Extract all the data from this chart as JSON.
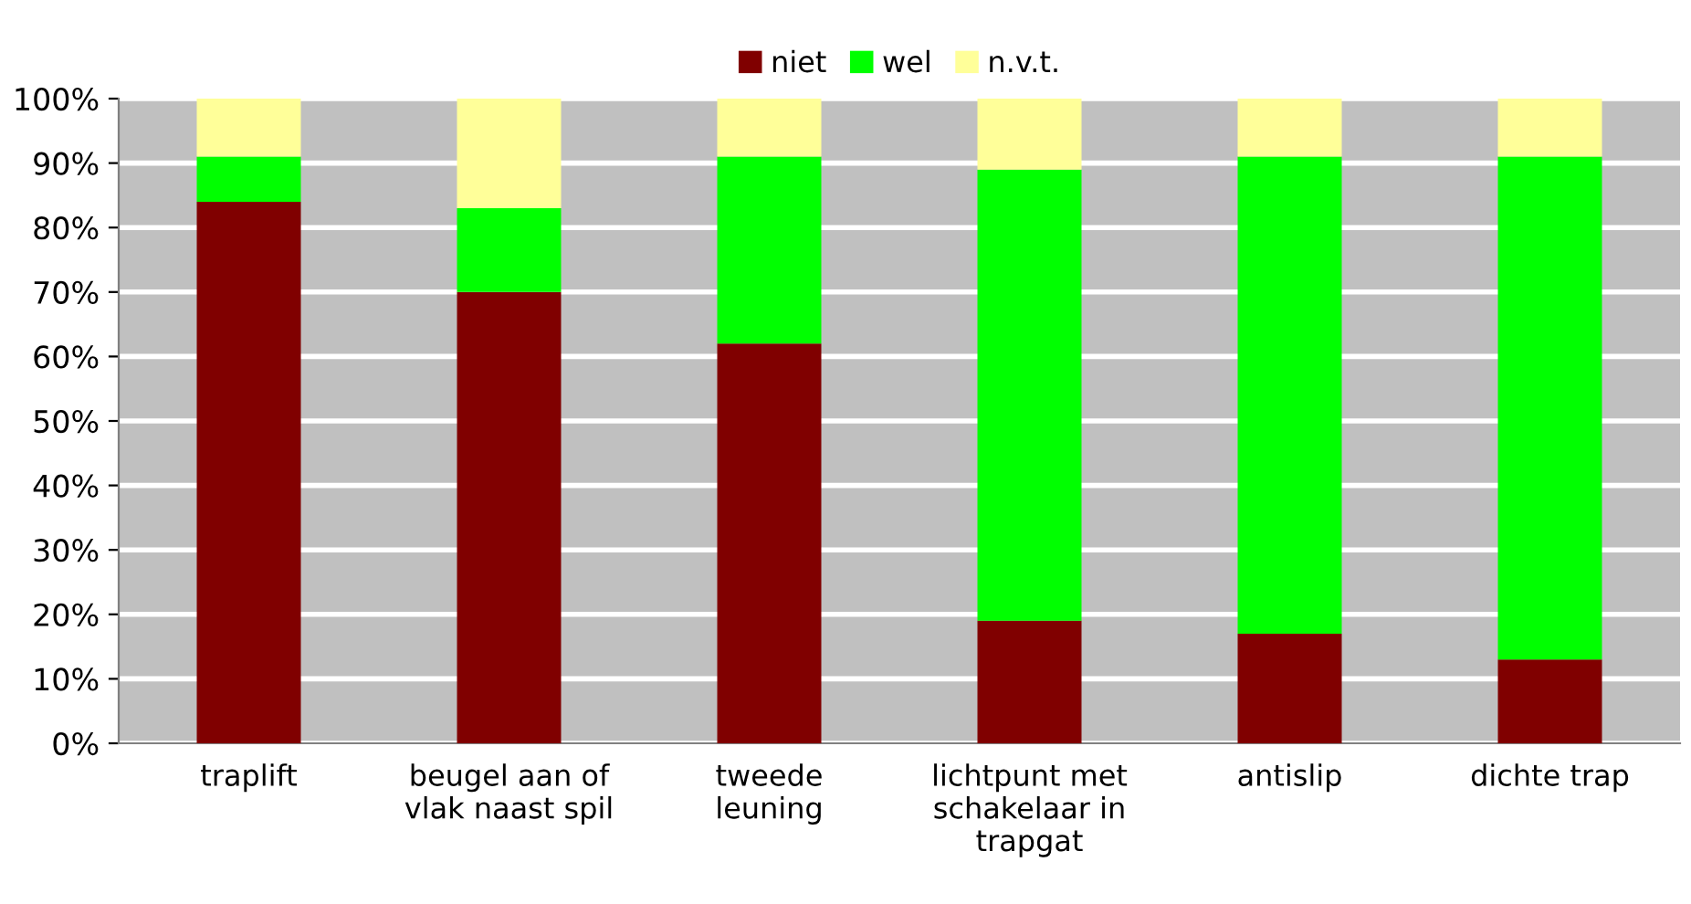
{
  "chart_data": {
    "type": "bar",
    "stacked": true,
    "categories": [
      "traplift",
      "beugel aan of\nvlak naast spil",
      "tweede\nleuning",
      "lichtpunt met\nschakelaar in\ntrapgat",
      "antislip",
      "dichte trap"
    ],
    "series": [
      {
        "name": "niet",
        "color": "#800000",
        "values": [
          84,
          70,
          62,
          19,
          17,
          13
        ]
      },
      {
        "name": "wel",
        "color": "#00ff00",
        "values": [
          7,
          13,
          29,
          70,
          74,
          78
        ]
      },
      {
        "name": "n.v.t.",
        "color": "#ffff99",
        "values": [
          9,
          17,
          9,
          11,
          9,
          9
        ]
      }
    ],
    "ylim": [
      0,
      100
    ],
    "yticks": [
      {
        "value": 0,
        "label": "0%"
      },
      {
        "value": 10,
        "label": "10%"
      },
      {
        "value": 20,
        "label": "20%"
      },
      {
        "value": 30,
        "label": "30%"
      },
      {
        "value": 40,
        "label": "40%"
      },
      {
        "value": 50,
        "label": "50%"
      },
      {
        "value": 60,
        "label": "60%"
      },
      {
        "value": 70,
        "label": "70%"
      },
      {
        "value": 80,
        "label": "80%"
      },
      {
        "value": 90,
        "label": "90%"
      },
      {
        "value": 100,
        "label": "100%"
      }
    ],
    "grid": "y",
    "legend": "top"
  }
}
